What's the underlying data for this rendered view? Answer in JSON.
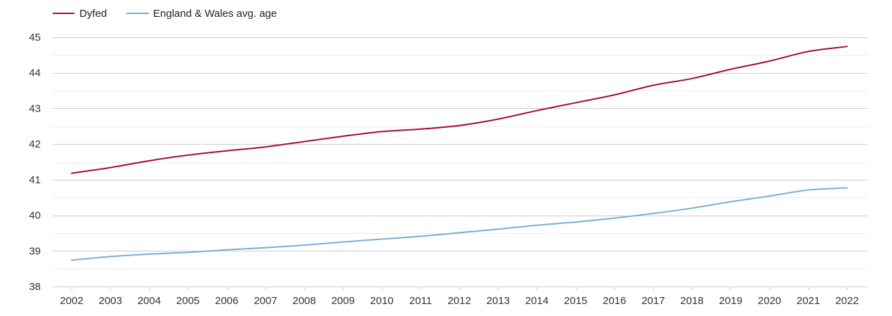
{
  "chart_data": {
    "type": "line",
    "title": "",
    "xlabel": "",
    "ylabel": "",
    "categories": [
      "2002",
      "2003",
      "2004",
      "2005",
      "2006",
      "2007",
      "2008",
      "2009",
      "2010",
      "2011",
      "2012",
      "2013",
      "2014",
      "2015",
      "2016",
      "2017",
      "2018",
      "2019",
      "2020",
      "2021",
      "2022"
    ],
    "ylim": [
      38,
      45
    ],
    "yticks": [
      38,
      39,
      40,
      41,
      42,
      43,
      44,
      45
    ],
    "grid": true,
    "legend_position": "top-left",
    "series": [
      {
        "name": "Dyfed",
        "color": "#a50d2e",
        "values": [
          41.18,
          41.34,
          41.53,
          41.69,
          41.81,
          41.92,
          42.07,
          42.22,
          42.35,
          42.42,
          42.52,
          42.7,
          42.94,
          43.16,
          43.38,
          43.65,
          43.84,
          44.1,
          44.33,
          44.6,
          44.74
        ]
      },
      {
        "name": "England & Wales avg. age",
        "color": "#7aaed0",
        "values": [
          38.74,
          38.84,
          38.91,
          38.96,
          39.03,
          39.09,
          39.16,
          39.25,
          39.33,
          39.41,
          39.51,
          39.61,
          39.72,
          39.81,
          39.92,
          40.05,
          40.2,
          40.38,
          40.54,
          40.71,
          40.77
        ]
      }
    ]
  }
}
